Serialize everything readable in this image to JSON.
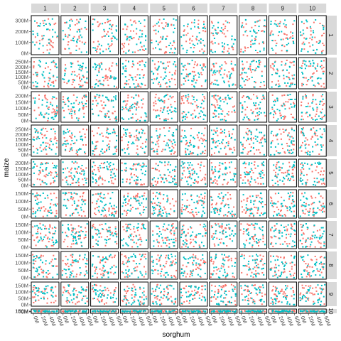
{
  "chart_data": {
    "type": "scatter",
    "layout": "facet-grid",
    "xlabel": "sorghum",
    "ylabel": "maize",
    "col_facets": [
      "1",
      "2",
      "3",
      "4",
      "5",
      "6",
      "7",
      "8",
      "9",
      "10"
    ],
    "row_facets": [
      "1",
      "2",
      "3",
      "4",
      "5",
      "6",
      "7",
      "8",
      "9",
      "10"
    ],
    "row_y_ticks": [
      [
        "300M",
        "200M",
        "100M",
        "0M"
      ],
      [
        "250M",
        "200M",
        "150M",
        "100M",
        "50M",
        "0M"
      ],
      [
        "200M",
        "150M",
        "100M",
        "50M",
        "0M"
      ],
      [
        "250M",
        "200M",
        "150M",
        "100M",
        "50M",
        "0M"
      ],
      [
        "200M",
        "150M",
        "100M",
        "50M",
        "0M"
      ],
      [
        "150M",
        "100M",
        "50M",
        "0M"
      ],
      [
        "150M",
        "100M",
        "50M",
        "0M"
      ],
      [
        "150M",
        "100M",
        "50M",
        "0M"
      ],
      [
        "150M",
        "100M",
        "50M",
        "0M"
      ],
      [
        "150M",
        "100M",
        "50M",
        "0M"
      ]
    ],
    "row_y_max": [
      330,
      260,
      230,
      260,
      230,
      175,
      175,
      175,
      175,
      175
    ],
    "x_ticks": [
      "0M",
      "20M",
      "40M",
      "60M"
    ],
    "x_range": [
      0,
      65
    ],
    "series": [
      {
        "color": "#f8766d"
      },
      {
        "color": "#00bfc4"
      }
    ],
    "points_per_panel_per_series": 30,
    "grid": false
  }
}
